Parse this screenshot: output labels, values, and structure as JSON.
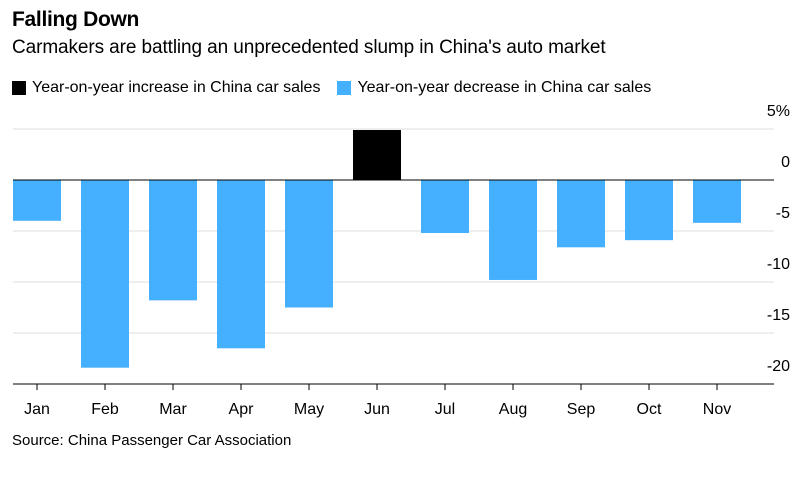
{
  "title": "Falling Down",
  "subtitle": "Carmakers are battling an unprecedented slump in China's auto market",
  "source": "Source: China Passenger Car Association",
  "colors": {
    "increase": "#000000",
    "decrease": "#45b0ff",
    "grid": "#dddddd"
  },
  "legend": [
    {
      "label": "Year-on-year increase in China car sales",
      "color": "#000000"
    },
    {
      "label": "Year-on-year decrease in China car sales",
      "color": "#45b0ff"
    }
  ],
  "chart_data": {
    "type": "bar",
    "categories": [
      "Jan",
      "Feb",
      "Mar",
      "Apr",
      "May",
      "Jun",
      "Jul",
      "Aug",
      "Sep",
      "Oct",
      "Nov"
    ],
    "values": [
      -4.0,
      -18.4,
      -11.8,
      -16.5,
      -12.5,
      4.9,
      -5.2,
      -9.8,
      -6.6,
      -5.9,
      -4.2
    ],
    "ylim": [
      -20,
      5
    ],
    "yticks": [
      5,
      0,
      -5,
      -10,
      -15,
      -20
    ],
    "ytick_labels": [
      "5%",
      "0",
      "-5",
      "-10",
      "-15",
      "-20"
    ],
    "grid": true,
    "legend_position": "top"
  }
}
